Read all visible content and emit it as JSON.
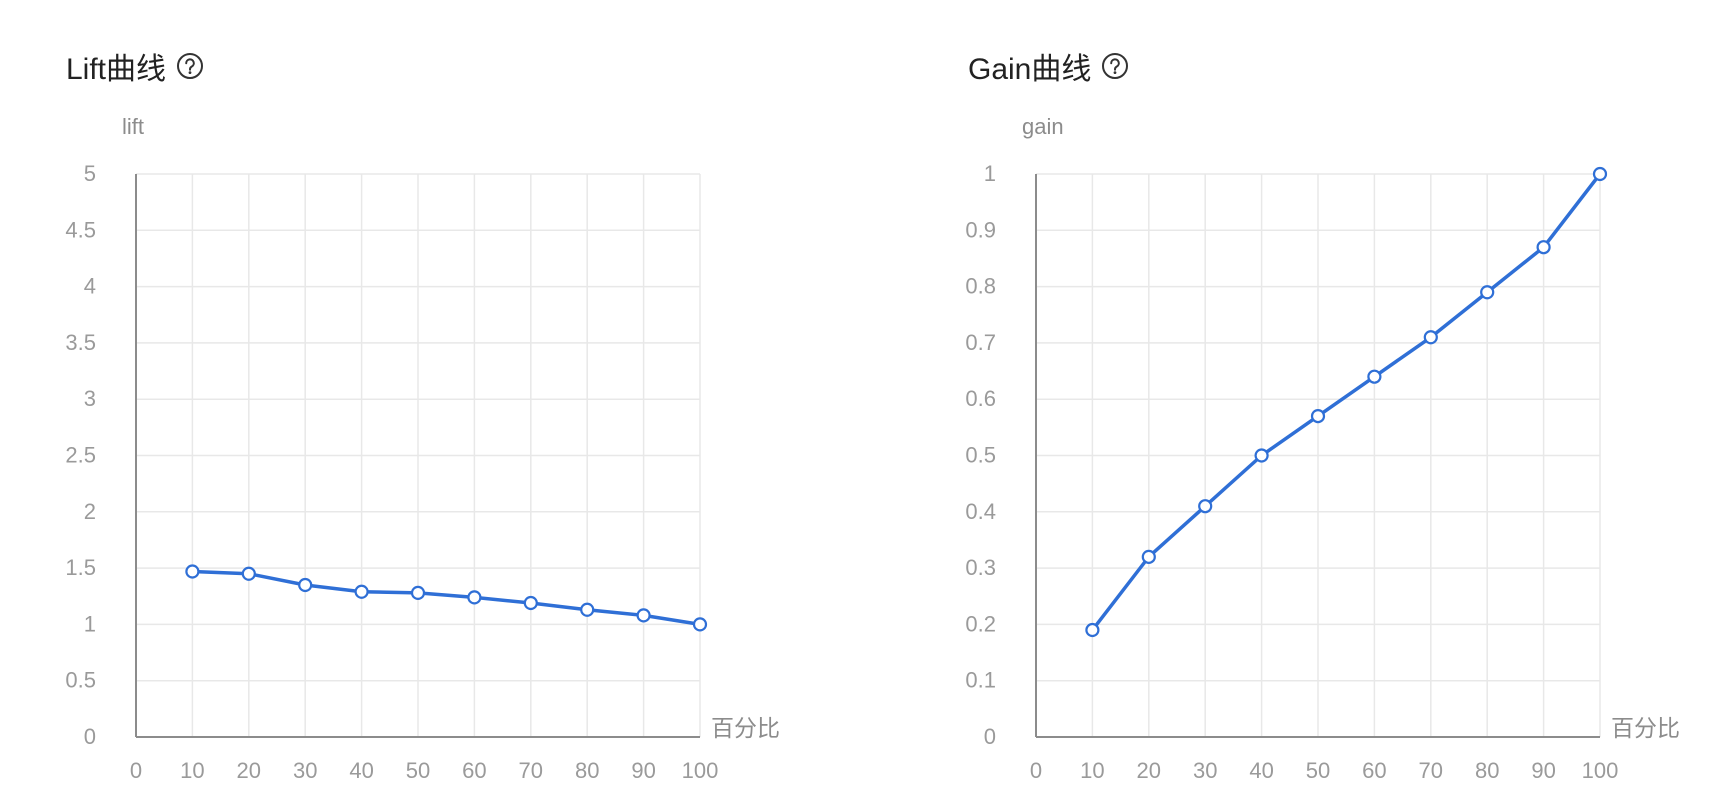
{
  "chart_data": [
    {
      "type": "line",
      "title": "Lift曲线",
      "ylabel": "lift",
      "xlabel": "百分比",
      "x": [
        10,
        20,
        30,
        40,
        50,
        60,
        70,
        80,
        90,
        100
      ],
      "xticks": [
        "0",
        "10",
        "20",
        "30",
        "40",
        "50",
        "60",
        "70",
        "80",
        "90",
        "100"
      ],
      "yticks": [
        "0",
        "0.5",
        "1",
        "1.5",
        "2",
        "2.5",
        "3",
        "3.5",
        "4",
        "4.5",
        "5"
      ],
      "xlim": [
        0,
        100
      ],
      "ylim": [
        0,
        5
      ],
      "grid": true,
      "series": [
        {
          "values": [
            1.47,
            1.45,
            1.35,
            1.29,
            1.28,
            1.24,
            1.19,
            1.13,
            1.08,
            1.0
          ]
        }
      ]
    },
    {
      "type": "line",
      "title": "Gain曲线",
      "ylabel": "gain",
      "xlabel": "百分比",
      "x": [
        10,
        20,
        30,
        40,
        50,
        60,
        70,
        80,
        90,
        100
      ],
      "xticks": [
        "0",
        "10",
        "20",
        "30",
        "40",
        "50",
        "60",
        "70",
        "80",
        "90",
        "100"
      ],
      "yticks": [
        "0",
        "0.1",
        "0.2",
        "0.3",
        "0.4",
        "0.5",
        "0.6",
        "0.7",
        "0.8",
        "0.9",
        "1"
      ],
      "xlim": [
        0,
        100
      ],
      "ylim": [
        0,
        1
      ],
      "grid": true,
      "series": [
        {
          "values": [
            0.19,
            0.32,
            0.41,
            0.5,
            0.57,
            0.64,
            0.71,
            0.79,
            0.87,
            1.0
          ]
        }
      ]
    }
  ],
  "colors": {
    "line": "#2f6fd6",
    "grid": "#e8e8e8",
    "axis": "#8c8c8c",
    "tick_text": "#9a9a9a"
  },
  "icons": {
    "help": "question-circle-icon"
  }
}
